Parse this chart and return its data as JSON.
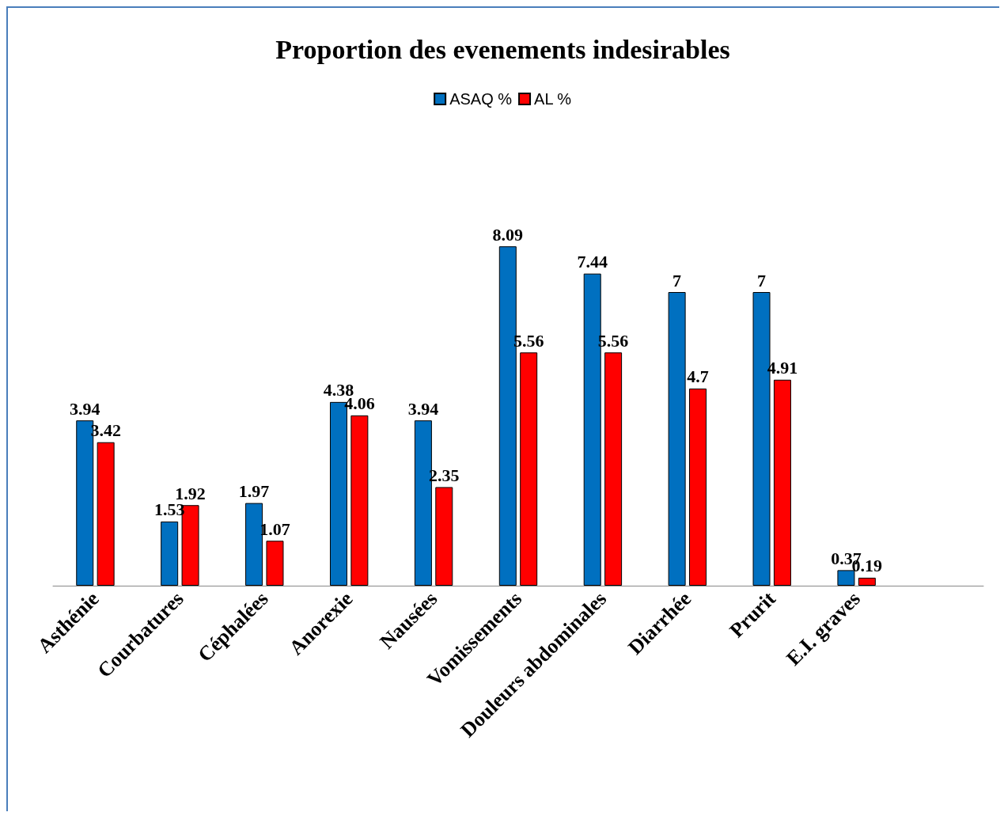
{
  "chart_data": {
    "type": "bar",
    "title": "Proportion des evenements indesirables",
    "categories": [
      "Asthénie",
      "Courbatures",
      "Céphalées",
      "Anorexie",
      "Nausées",
      "Vomissements",
      "Douleurs abdominales",
      "Diarrhée",
      "Prurit",
      "E.I. graves",
      null
    ],
    "series": [
      {
        "name": "ASAQ %",
        "color": "#0070c0",
        "values": [
          3.94,
          1.53,
          1.97,
          4.38,
          3.94,
          8.09,
          7.44,
          7,
          7,
          0.37,
          null
        ]
      },
      {
        "name": "AL %",
        "color": "#ff0000",
        "values": [
          3.42,
          1.92,
          1.07,
          4.06,
          2.35,
          5.56,
          5.56,
          4.7,
          4.91,
          0.19,
          null
        ]
      }
    ],
    "data_labels": true,
    "legend": "top",
    "grid": false
  }
}
